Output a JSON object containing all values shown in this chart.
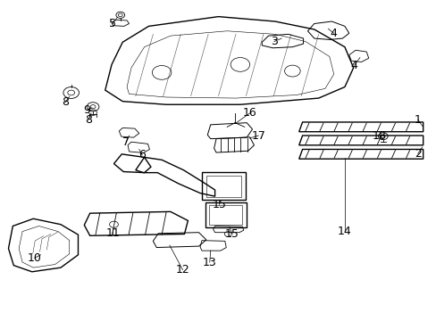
{
  "bg_color": "#ffffff",
  "fig_width": 4.89,
  "fig_height": 3.6,
  "dpi": 100,
  "line_color": "#000000",
  "text_color": "#000000",
  "font_size": 9
}
